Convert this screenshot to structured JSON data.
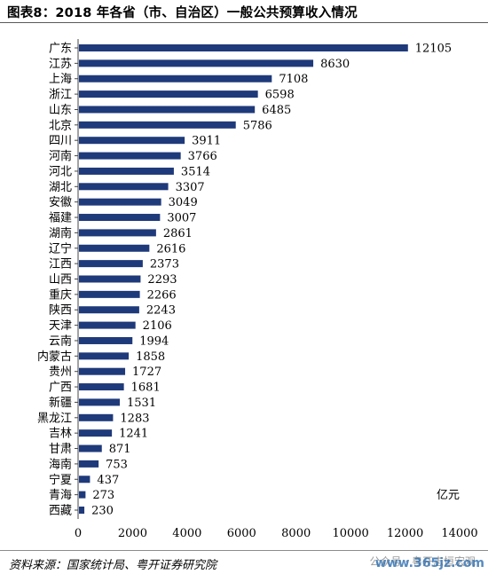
{
  "header": {
    "title": "图表8：2018 年各省（市、自治区）一般公共预算收入情况"
  },
  "footer": {
    "source": "资料来源：国家统计局、粤开证券研究院",
    "watermark_text": "公众号 · 粤开志恒宏观",
    "watermark_url": "www.365jz.com"
  },
  "colors": {
    "bar": "#1f3a7a",
    "axis": "#444444"
  },
  "chart_data": {
    "type": "bar",
    "orientation": "horizontal",
    "title": "图表8：2018 年各省（市、自治区）一般公共预算收入情况",
    "unit_label": "亿元",
    "categories": [
      "广东",
      "江苏",
      "上海",
      "浙江",
      "山东",
      "北京",
      "四川",
      "河南",
      "河北",
      "湖北",
      "安徽",
      "福建",
      "湖南",
      "辽宁",
      "江西",
      "山西",
      "重庆",
      "陕西",
      "天津",
      "云南",
      "内蒙古",
      "贵州",
      "广西",
      "新疆",
      "黑龙江",
      "吉林",
      "甘肃",
      "海南",
      "宁夏",
      "青海",
      "西藏"
    ],
    "values": [
      12105,
      8630,
      7108,
      6598,
      6485,
      5786,
      3911,
      3766,
      3514,
      3307,
      3049,
      3007,
      2861,
      2616,
      2373,
      2293,
      2266,
      2243,
      2106,
      1994,
      1858,
      1727,
      1681,
      1531,
      1283,
      1241,
      871,
      753,
      437,
      273,
      230
    ],
    "xlim": [
      0,
      14000
    ],
    "xticks": [
      "0",
      "2000",
      "4000",
      "6000",
      "8000",
      "10000",
      "12000",
      "14000"
    ],
    "grid": false
  }
}
